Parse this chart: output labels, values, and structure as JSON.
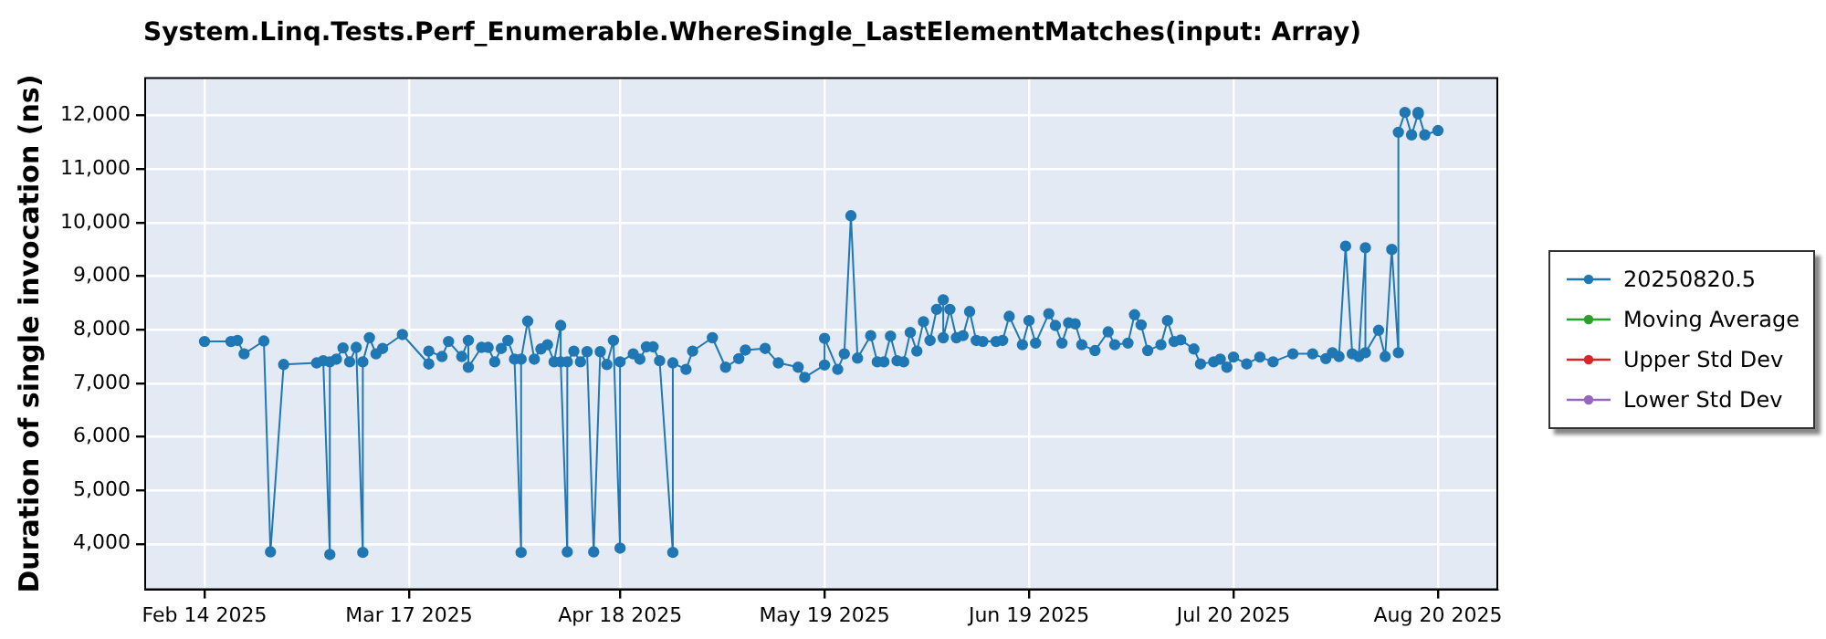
{
  "chart_data": {
    "type": "line",
    "title": "System.Linq.Tests.Perf_Enumerable.WhereSingle_LastElementMatches(input: Array)",
    "ylabel": "Duration of single invocation (ns)",
    "xlim": [
      "2025-02-05",
      "2025-08-29"
    ],
    "xticks": [
      {
        "value": "2025-02-14",
        "label": "Feb 14 2025"
      },
      {
        "value": "2025-03-17",
        "label": "Mar 17 2025"
      },
      {
        "value": "2025-04-18",
        "label": "Apr 18 2025"
      },
      {
        "value": "2025-05-19",
        "label": "May 19 2025"
      },
      {
        "value": "2025-06-19",
        "label": "Jun 19 2025"
      },
      {
        "value": "2025-07-20",
        "label": "Jul 20 2025"
      },
      {
        "value": "2025-08-20",
        "label": "Aug 20 2025"
      }
    ],
    "ylim": [
      3150,
      12700
    ],
    "yticks": [
      {
        "value": 4000,
        "label": "4,000"
      },
      {
        "value": 5000,
        "label": "5,000"
      },
      {
        "value": 6000,
        "label": "6,000"
      },
      {
        "value": 7000,
        "label": "7,000"
      },
      {
        "value": 8000,
        "label": "8,000"
      },
      {
        "value": 9000,
        "label": "9,000"
      },
      {
        "value": 10000,
        "label": "10,000"
      },
      {
        "value": 11000,
        "label": "11,000"
      },
      {
        "value": 12000,
        "label": "12,000"
      }
    ],
    "grid": true,
    "legend": "right",
    "marker": "circle",
    "line_style": "solid",
    "series": [
      {
        "name": "20250820.5",
        "color": "#1f77b4",
        "x": [
          "2025-02-14",
          "2025-02-18",
          "2025-02-19",
          "2025-02-20",
          "2025-02-23",
          "2025-02-24",
          "2025-02-26",
          "2025-03-03",
          "2025-03-04",
          "2025-03-05",
          "2025-03-05",
          "2025-03-06",
          "2025-03-07",
          "2025-03-08",
          "2025-03-09",
          "2025-03-10",
          "2025-03-10",
          "2025-03-11",
          "2025-03-12",
          "2025-03-13",
          "2025-03-16",
          "2025-03-20",
          "2025-03-20",
          "2025-03-22",
          "2025-03-23",
          "2025-03-25",
          "2025-03-26",
          "2025-03-26",
          "2025-03-28",
          "2025-03-29",
          "2025-03-30",
          "2025-03-31",
          "2025-04-01",
          "2025-04-02",
          "2025-04-03",
          "2025-04-03",
          "2025-04-04",
          "2025-04-05",
          "2025-04-06",
          "2025-04-07",
          "2025-04-08",
          "2025-04-09",
          "2025-04-09",
          "2025-04-10",
          "2025-04-10",
          "2025-04-11",
          "2025-04-12",
          "2025-04-13",
          "2025-04-14",
          "2025-04-15",
          "2025-04-16",
          "2025-04-17",
          "2025-04-18",
          "2025-04-18",
          "2025-04-20",
          "2025-04-21",
          "2025-04-22",
          "2025-04-23",
          "2025-04-24",
          "2025-04-26",
          "2025-04-26",
          "2025-04-28",
          "2025-04-29",
          "2025-05-02",
          "2025-05-04",
          "2025-05-06",
          "2025-05-07",
          "2025-05-10",
          "2025-05-12",
          "2025-05-15",
          "2025-05-16",
          "2025-05-19",
          "2025-05-19",
          "2025-05-21",
          "2025-05-22",
          "2025-05-23",
          "2025-05-24",
          "2025-05-26",
          "2025-05-27",
          "2025-05-28",
          "2025-05-29",
          "2025-05-30",
          "2025-05-31",
          "2025-06-01",
          "2025-06-02",
          "2025-06-03",
          "2025-06-04",
          "2025-06-05",
          "2025-06-06",
          "2025-06-06",
          "2025-06-07",
          "2025-06-08",
          "2025-06-09",
          "2025-06-10",
          "2025-06-11",
          "2025-06-12",
          "2025-06-14",
          "2025-06-15",
          "2025-06-16",
          "2025-06-18",
          "2025-06-19",
          "2025-06-20",
          "2025-06-22",
          "2025-06-23",
          "2025-06-24",
          "2025-06-25",
          "2025-06-26",
          "2025-06-27",
          "2025-06-29",
          "2025-07-01",
          "2025-07-02",
          "2025-07-04",
          "2025-07-05",
          "2025-07-06",
          "2025-07-07",
          "2025-07-09",
          "2025-07-10",
          "2025-07-11",
          "2025-07-12",
          "2025-07-14",
          "2025-07-15",
          "2025-07-17",
          "2025-07-18",
          "2025-07-19",
          "2025-07-20",
          "2025-07-22",
          "2025-07-24",
          "2025-07-26",
          "2025-07-29",
          "2025-08-01",
          "2025-08-03",
          "2025-08-04",
          "2025-08-05",
          "2025-08-06",
          "2025-08-07",
          "2025-08-08",
          "2025-08-09",
          "2025-08-09",
          "2025-08-11",
          "2025-08-12",
          "2025-08-13",
          "2025-08-14",
          "2025-08-14",
          "2025-08-15",
          "2025-08-16",
          "2025-08-17",
          "2025-08-17",
          "2025-08-18",
          "2025-08-20"
        ],
        "values": [
          7780,
          7780,
          7800,
          7550,
          7790,
          3850,
          7350,
          7380,
          7420,
          3800,
          7400,
          7450,
          7660,
          7400,
          7670,
          3840,
          7400,
          7850,
          7550,
          7650,
          7910,
          7360,
          7600,
          7500,
          7780,
          7500,
          7800,
          7300,
          7670,
          7670,
          7400,
          7650,
          7800,
          7450,
          3840,
          7450,
          8160,
          7450,
          7640,
          7720,
          7400,
          8080,
          7400,
          3850,
          7400,
          7600,
          7400,
          7590,
          3850,
          7590,
          7350,
          7800,
          3920,
          7400,
          7550,
          7450,
          7680,
          7680,
          7420,
          3840,
          7380,
          7260,
          7600,
          7850,
          7300,
          7460,
          7620,
          7650,
          7380,
          7300,
          7110,
          7340,
          7840,
          7260,
          7550,
          10130,
          7470,
          7890,
          7400,
          7400,
          7880,
          7420,
          7400,
          7950,
          7600,
          8150,
          7800,
          8380,
          8560,
          7850,
          8380,
          7850,
          7890,
          8340,
          7800,
          7780,
          7780,
          7800,
          8250,
          7720,
          8170,
          7750,
          8300,
          8080,
          7750,
          8130,
          8110,
          7720,
          7610,
          7960,
          7720,
          7750,
          8280,
          8090,
          7610,
          7720,
          8170,
          7780,
          7810,
          7640,
          7360,
          7400,
          7450,
          7300,
          7490,
          7360,
          7490,
          7400,
          7550,
          7550,
          7460,
          7570,
          7500,
          9560,
          7550,
          7500,
          9530,
          7570,
          7990,
          7500,
          9500,
          7570,
          11690,
          12060,
          11640,
          12030,
          12060,
          11640,
          11720
        ]
      },
      {
        "name": "Moving Average",
        "color": "#2ca02c"
      },
      {
        "name": "Upper Std Dev",
        "color": "#d62728"
      },
      {
        "name": "Lower Std Dev",
        "color": "#9467bd"
      }
    ]
  }
}
